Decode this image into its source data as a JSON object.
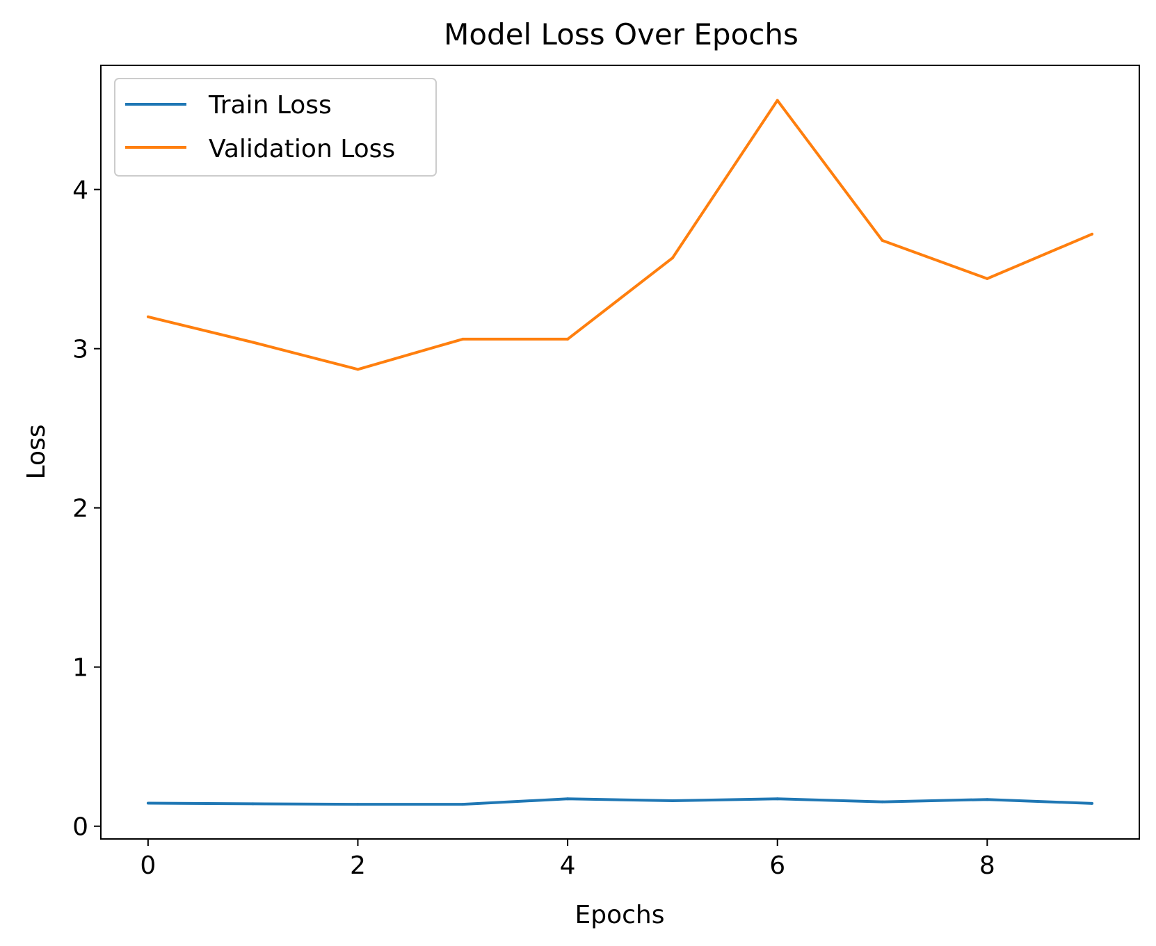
{
  "chart_data": {
    "type": "line",
    "title": "Model Loss Over Epochs",
    "xlabel": "Epochs",
    "ylabel": "Loss",
    "x": [
      0,
      1,
      2,
      3,
      4,
      5,
      6,
      7,
      8,
      9
    ],
    "xlim": [
      -0.45,
      9.45
    ],
    "ylim": [
      -0.08,
      4.78
    ],
    "xticks": [
      0,
      2,
      4,
      6,
      8
    ],
    "yticks": [
      0,
      1,
      2,
      3,
      4
    ],
    "grid": false,
    "legend_position": "upper-left",
    "series": [
      {
        "name": "Train Loss",
        "color": "#1f77b4",
        "values": [
          0.145,
          0.141,
          0.138,
          0.138,
          0.172,
          0.16,
          0.172,
          0.153,
          0.168,
          0.143
        ]
      },
      {
        "name": "Validation Loss",
        "color": "#ff7f0e",
        "values": [
          3.2,
          3.04,
          2.87,
          3.06,
          3.06,
          3.57,
          4.56,
          3.68,
          3.44,
          3.72
        ]
      }
    ]
  }
}
